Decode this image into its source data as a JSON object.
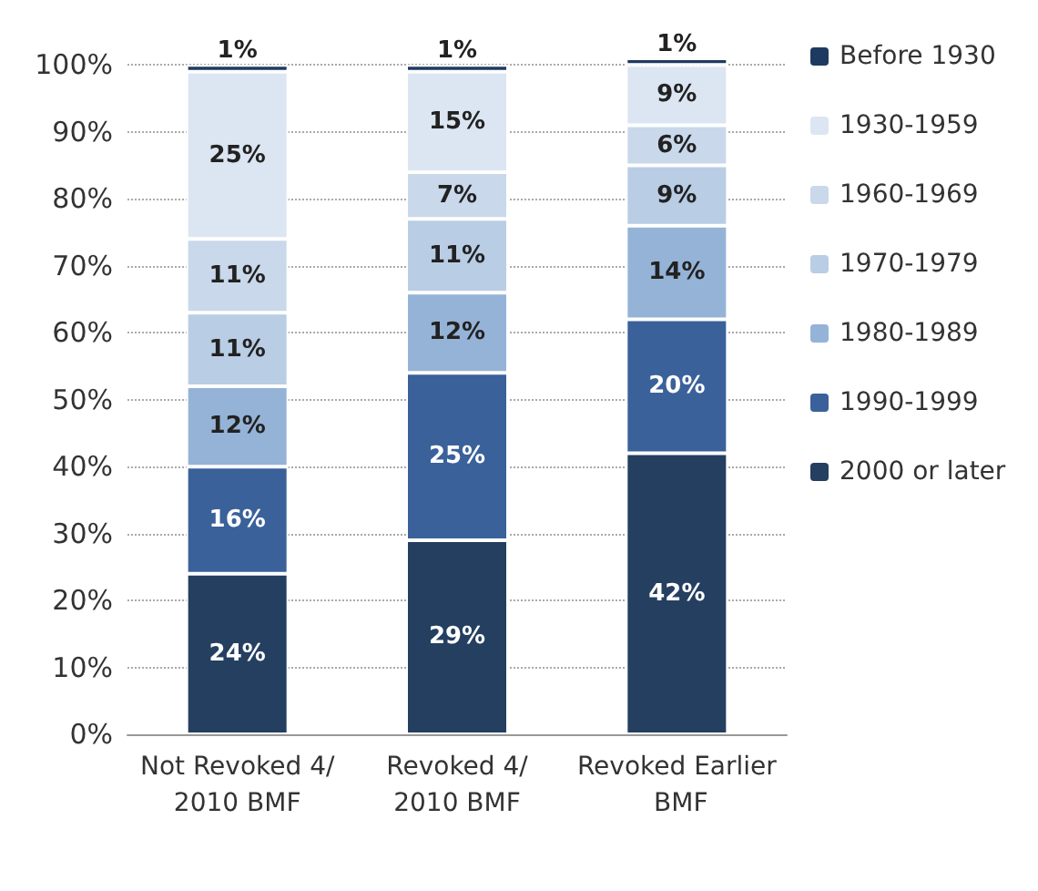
{
  "chart_data": {
    "type": "bar",
    "stacked": true,
    "categories": [
      "Not Revoked 4/2010 BMF",
      "Revoked 4/2010 BMF",
      "Revoked Earlier BMF"
    ],
    "series": [
      {
        "name": "2000 or later",
        "color": "#243f60",
        "values": [
          24,
          29,
          42
        ],
        "value_labels": [
          "24%",
          "29%",
          "42%"
        ]
      },
      {
        "name": "1990-1999",
        "color": "#3a619a",
        "values": [
          16,
          25,
          20
        ],
        "value_labels": [
          "16%",
          "25%",
          "20%"
        ]
      },
      {
        "name": "1980-1989",
        "color": "#95b3d7",
        "values": [
          12,
          12,
          14
        ],
        "value_labels": [
          "12%",
          "12%",
          "14%"
        ]
      },
      {
        "name": "1970-1979",
        "color": "#b9cde5",
        "values": [
          11,
          11,
          9
        ],
        "value_labels": [
          "11%",
          "11%",
          "9%"
        ]
      },
      {
        "name": "1960-1969",
        "color": "#c9d8ea",
        "values": [
          11,
          7,
          6
        ],
        "value_labels": [
          "11%",
          "7%",
          "6%"
        ]
      },
      {
        "name": "1930-1959",
        "color": "#dce6f2",
        "values": [
          25,
          15,
          9
        ],
        "value_labels": [
          "25%",
          "15%",
          "9%"
        ]
      },
      {
        "name": "Before 1930",
        "color": "#1f3a60",
        "values": [
          1,
          1,
          1
        ],
        "value_labels": [
          "1%",
          "1%",
          "1%"
        ]
      }
    ],
    "ylim": [
      0,
      101
    ],
    "yticks": [
      {
        "value": 0,
        "label": "0%"
      },
      {
        "value": 10,
        "label": "10%"
      },
      {
        "value": 20,
        "label": "20%"
      },
      {
        "value": 30,
        "label": "30%"
      },
      {
        "value": 40,
        "label": "40%"
      },
      {
        "value": 50,
        "label": "50%"
      },
      {
        "value": 60,
        "label": "60%"
      },
      {
        "value": 70,
        "label": "70%"
      },
      {
        "value": 80,
        "label": "80%"
      },
      {
        "value": 90,
        "label": "90%"
      },
      {
        "value": 100,
        "label": "100%"
      }
    ],
    "grid": "y",
    "legend": "right"
  }
}
